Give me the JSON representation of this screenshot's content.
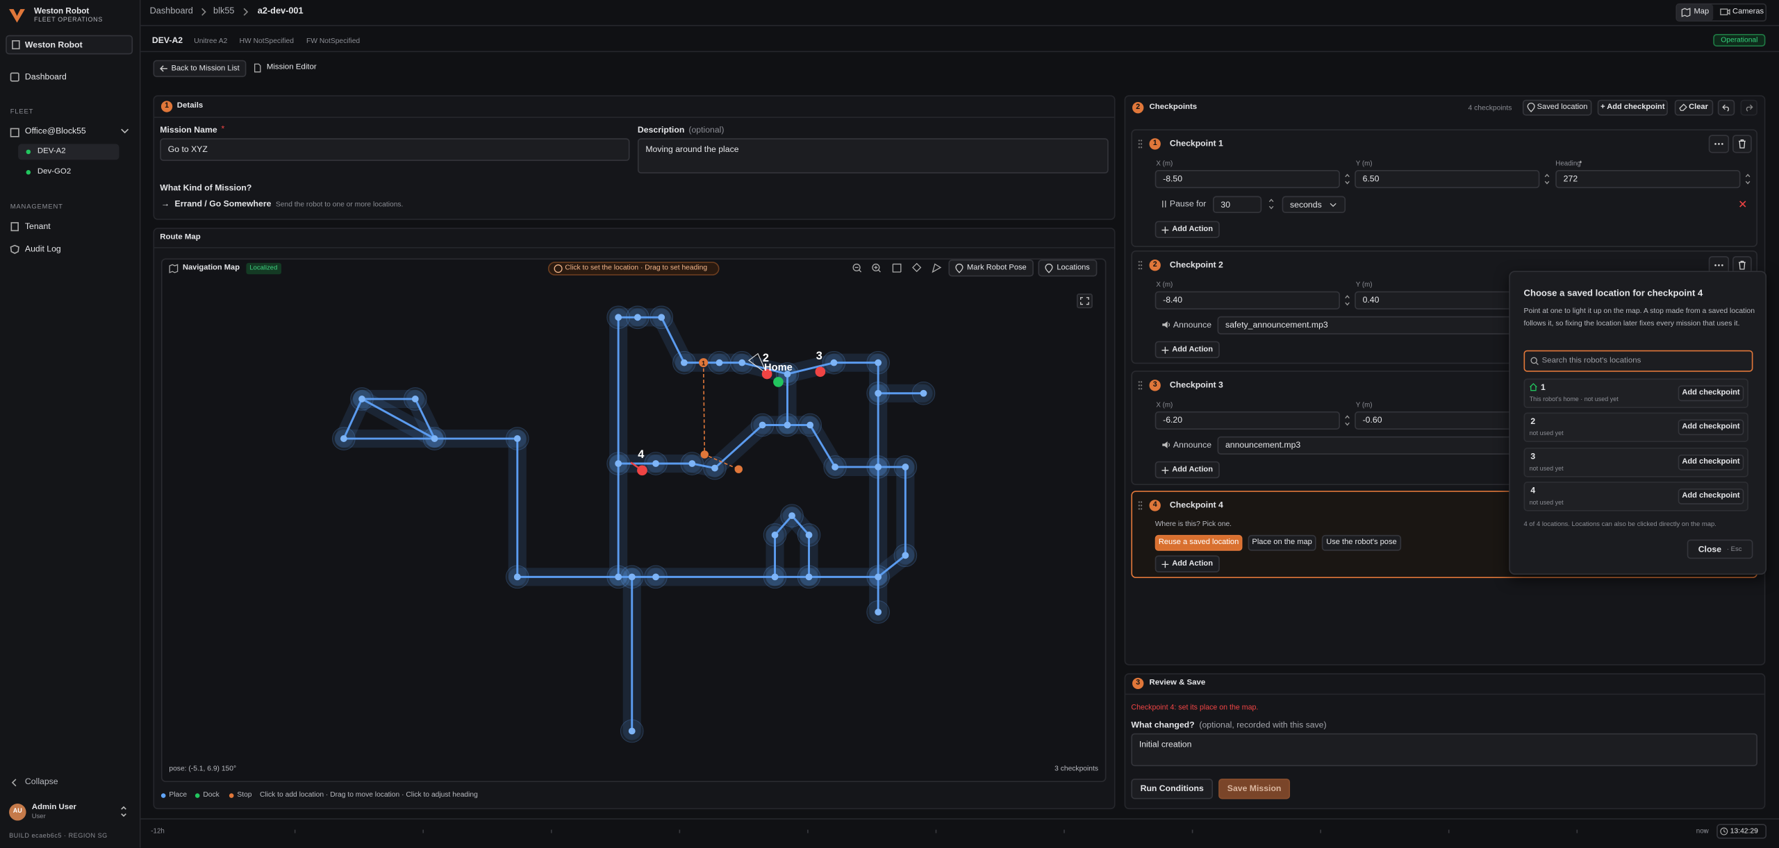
{
  "sidebar": {
    "brand": "Weston Robot",
    "brand_sub": "FLEET OPERATIONS",
    "org": "Weston Robot",
    "nav_dashboard": "Dashboard",
    "fleet_heading": "FLEET",
    "fleet_group": "Office@Block55",
    "robots": [
      "DEV-A2",
      "Dev-GO2"
    ],
    "management_heading": "MANAGEMENT",
    "management": [
      "Tenant",
      "Audit Log"
    ],
    "collapse": "Collapse",
    "user": {
      "initials": "AU",
      "name": "Admin User",
      "role": "User"
    },
    "build": "BUILD ecaeb6c5 · REGION SG"
  },
  "topbar": {
    "breadcrumbs": [
      "Dashboard",
      "blk55",
      "a2-dev-001"
    ],
    "map": "Map",
    "cameras": "Cameras"
  },
  "robot_bar": {
    "id": "DEV-A2",
    "model": "Unitree A2",
    "hw": "HW NotSpecified",
    "fw": "FW NotSpecified",
    "status": "Operational"
  },
  "editor_bar": {
    "back": "Back to Mission List",
    "title": "Mission Editor"
  },
  "details": {
    "step": "1",
    "title": "Details",
    "name_label": "Mission Name",
    "required": "*",
    "name_value": "Go to XYZ",
    "desc_label": "Description",
    "desc_optional": "(optional)",
    "desc_value": "Moving around the place",
    "kind_label": "What Kind of Mission?",
    "kind_arrow": "→",
    "kind_name": "Errand / Go Somewhere",
    "kind_desc": "Send the robot to one or more locations."
  },
  "route_map": {
    "title": "Route Map",
    "nav_title": "Navigation Map",
    "localized": "Localized",
    "hint": "Click to set the location · Drag to set heading",
    "mark_pose": "Mark Robot Pose",
    "locations": "Locations",
    "pins": [
      "1",
      "2",
      "3",
      "4"
    ],
    "home": "Home",
    "pose": "pose: (-5.1, 6.9) 150°",
    "checkpoint_count": "3 checkpoints",
    "legend": [
      "Place",
      "Dock",
      "Stop"
    ],
    "legend_hint": "Click to add location · Drag to move location · Click to adjust heading"
  },
  "checkpoints": {
    "step": "2",
    "title": "Checkpoints",
    "count": "4 checkpoints",
    "saved": "Saved location",
    "add": "+ Add checkpoint",
    "clear": "Clear",
    "items": [
      {
        "num": "1",
        "title": "Checkpoint 1",
        "x_label": "X (m)",
        "x": "-8.50",
        "y_label": "Y (m)",
        "y": "6.50",
        "heading_label": "Heading",
        "heading_req": "*",
        "heading": "272",
        "action": {
          "label": "Pause for",
          "value": "30",
          "unit": "seconds"
        },
        "add_action": "Add Action"
      },
      {
        "num": "2",
        "title": "Checkpoint 2",
        "x_label": "X (m)",
        "x": "-8.40",
        "y_label": "Y (m)",
        "y": "0.40",
        "action": {
          "label": "Announce",
          "value": "safety_announcement.mp3"
        },
        "add_action": "Add Action"
      },
      {
        "num": "3",
        "title": "Checkpoint 3",
        "x_label": "X (m)",
        "x": "-6.20",
        "y_label": "Y (m)",
        "y": "-0.60",
        "action": {
          "label": "Announce",
          "value": "announcement.mp3"
        },
        "add_action": "Add Action"
      },
      {
        "num": "4",
        "title": "Checkpoint 4",
        "prompt": "Where is this? Pick one.",
        "options": [
          "Reuse a saved location",
          "Place on the map",
          "Use the robot's pose"
        ],
        "add_action": "Add Action"
      }
    ]
  },
  "popover": {
    "title": "Choose a saved location for checkpoint 4",
    "body": "Point at one to light it up on the map. A stop made from a saved location follows it, so fixing the location later fixes every mission that uses it.",
    "search_placeholder": "Search this robot's locations",
    "locations": [
      {
        "name": "1",
        "note": "This robot's home · not used yet",
        "button": "Add checkpoint"
      },
      {
        "name": "2",
        "note": "not used yet",
        "button": "Add checkpoint"
      },
      {
        "name": "3",
        "note": "not used yet",
        "button": "Add checkpoint"
      },
      {
        "name": "4",
        "note": "not used yet",
        "button": "Add checkpoint"
      }
    ],
    "footer": "4 of 4 locations. Locations can also be clicked directly on the map.",
    "close": "Close",
    "shortcut": "· Esc"
  },
  "review": {
    "step": "3",
    "title": "Review & Save",
    "error": "Checkpoint 4: set its place on the map.",
    "changed_label": "What changed?",
    "changed_hint": "(optional, recorded with this save)",
    "changed_value": "Initial creation",
    "run_conditions": "Run Conditions",
    "save": "Save Mission"
  },
  "timeline": {
    "start": "-12h",
    "end": "now",
    "clock": "13:42:29"
  }
}
